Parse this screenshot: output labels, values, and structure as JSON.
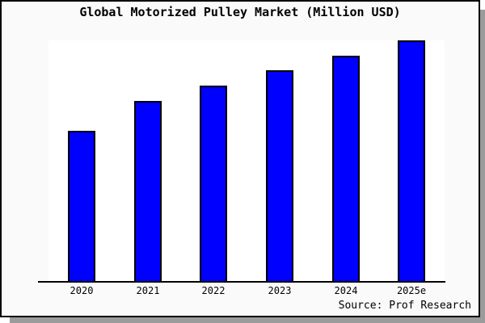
{
  "chart_data": {
    "type": "bar",
    "title": "Global Motorized Pulley Market (Million USD)",
    "categories": [
      "2020",
      "2021",
      "2022",
      "2023",
      "2024",
      "2025e"
    ],
    "values": [
      62.5,
      74.9,
      81.3,
      87.6,
      93.6,
      100
    ],
    "values_note": "Relative index estimated from bar heights (2025e = 100); the chart shows no y-axis tick labels or data labels",
    "xlabel": "",
    "ylabel": "",
    "ylim_relative": [
      0,
      100
    ],
    "grid": false,
    "legend": false,
    "bar_color": "#0000ff",
    "bar_border_color": "#000000",
    "plot_background": "#ffffff",
    "panel_background": "#fafafa",
    "frame_border_color": "#000000",
    "shadow_color": "#9b9b9b",
    "source": "Source: Prof Research"
  }
}
